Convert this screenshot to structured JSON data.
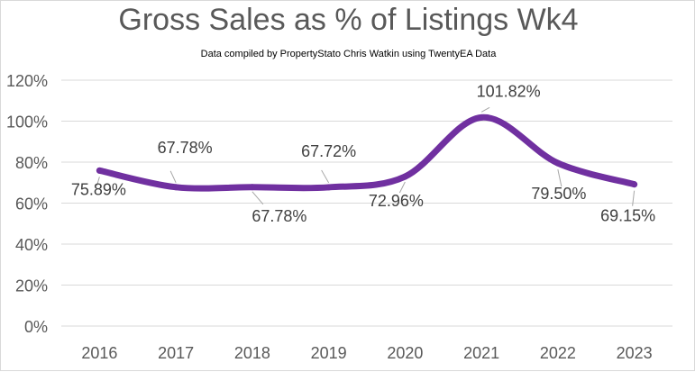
{
  "chart_data": {
    "type": "line",
    "title": "Gross Sales as % of Listings Wk4",
    "subtitle": "Data compiled by PropertyStato Chris Watkin using TwentyEA Data",
    "xlabel": "",
    "ylabel": "",
    "categories": [
      "2016",
      "2017",
      "2018",
      "2019",
      "2020",
      "2021",
      "2022",
      "2023"
    ],
    "series": [
      {
        "values": [
          75.89,
          67.78,
          67.78,
          67.72,
          72.96,
          101.82,
          79.5,
          69.15
        ],
        "labels": [
          "75.89%",
          "67.78%",
          "67.78%",
          "67.72%",
          "72.96%",
          "101.82%",
          "79.50%",
          "69.15%"
        ],
        "color": "#7030a0"
      }
    ],
    "ylim": [
      0,
      120
    ],
    "yticks": [
      0,
      20,
      40,
      60,
      80,
      100,
      120
    ],
    "ytick_labels": [
      "0%",
      "20%",
      "40%",
      "60%",
      "80%",
      "100%",
      "120%"
    ],
    "grid": true,
    "smooth": true,
    "legend": "none"
  }
}
